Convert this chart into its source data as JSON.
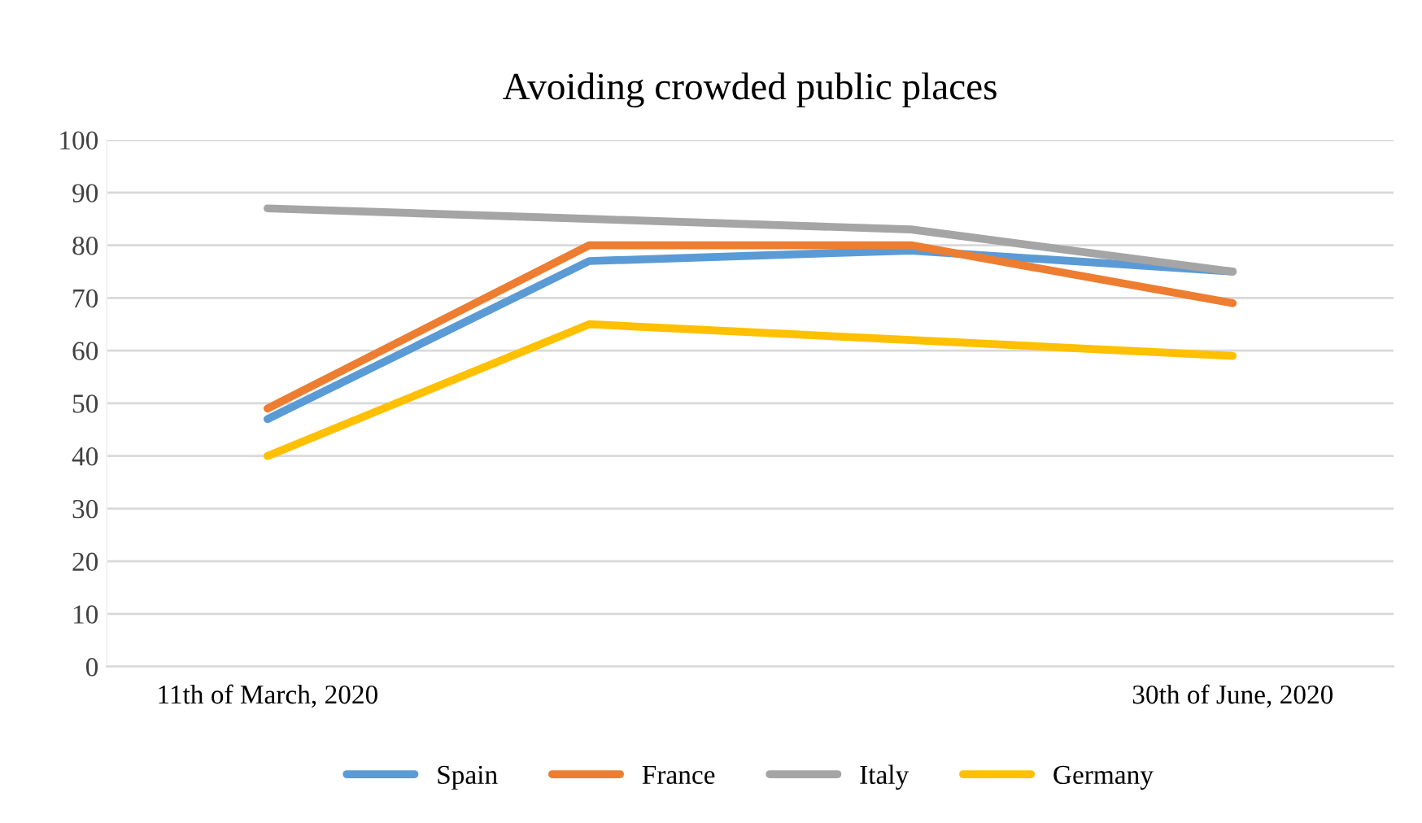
{
  "chart_data": {
    "type": "line",
    "title": "Avoiding crowded public places",
    "categories": [
      "11th of March, 2020",
      null,
      null,
      "30th of June, 2020"
    ],
    "series": [
      {
        "name": "Spain",
        "color": "#5b9bd5",
        "values": [
          47,
          77,
          79,
          75
        ]
      },
      {
        "name": "France",
        "color": "#ed7d31",
        "values": [
          49,
          80,
          80,
          69
        ]
      },
      {
        "name": "Italy",
        "color": "#a5a5a5",
        "values": [
          87,
          85,
          83,
          75
        ]
      },
      {
        "name": "Germany",
        "color": "#ffc000",
        "values": [
          40,
          65,
          62,
          59
        ]
      }
    ],
    "ylim": [
      0,
      100
    ],
    "yticks": [
      0,
      10,
      20,
      30,
      40,
      50,
      60,
      70,
      80,
      90,
      100
    ],
    "grid": "y",
    "legend": "bottom",
    "marker": "none",
    "line_style": "solid"
  }
}
